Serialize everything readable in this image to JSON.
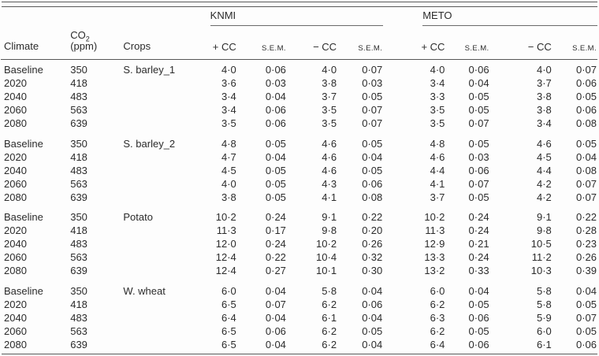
{
  "page": {
    "background": "#fdfdfd",
    "text_color": "#2b2b2b",
    "rule_color": "#575757"
  },
  "table": {
    "header": {
      "climate": "Climate",
      "co2_main": "CO",
      "co2_sub": "2",
      "co2_unit": "(ppm)",
      "crops": "Crops",
      "groups": [
        {
          "name": "KNMI",
          "subcols": [
            "+ CC",
            "S.E.M.",
            "− CC",
            "S.E.M."
          ]
        },
        {
          "name": "METO",
          "subcols": [
            "+ CC",
            "S.E.M.",
            "− CC",
            "S.E.M."
          ]
        }
      ]
    },
    "sections": [
      {
        "crop": "S. barley_1",
        "rows": [
          {
            "climate": "Baseline",
            "co2": "350",
            "knmi": [
              "4·0",
              "0·06",
              "4·0",
              "0·07"
            ],
            "meto": [
              "4·0",
              "0·06",
              "4·0",
              "0·07"
            ]
          },
          {
            "climate": "2020",
            "co2": "418",
            "knmi": [
              "3·6",
              "0·03",
              "3·8",
              "0·03"
            ],
            "meto": [
              "3·4",
              "0·04",
              "3·7",
              "0·06"
            ]
          },
          {
            "climate": "2040",
            "co2": "483",
            "knmi": [
              "3·4",
              "0·04",
              "3·7",
              "0·05"
            ],
            "meto": [
              "3·3",
              "0·05",
              "3·8",
              "0·05"
            ]
          },
          {
            "climate": "2060",
            "co2": "563",
            "knmi": [
              "3·4",
              "0·06",
              "3·5",
              "0·07"
            ],
            "meto": [
              "3·5",
              "0·05",
              "3·8",
              "0·06"
            ]
          },
          {
            "climate": "2080",
            "co2": "639",
            "knmi": [
              "3·5",
              "0·06",
              "3·5",
              "0·07"
            ],
            "meto": [
              "3·5",
              "0·07",
              "3·4",
              "0·08"
            ]
          }
        ]
      },
      {
        "crop": "S. barley_2",
        "rows": [
          {
            "climate": "Baseline",
            "co2": "350",
            "knmi": [
              "4·8",
              "0·05",
              "4·6",
              "0·05"
            ],
            "meto": [
              "4·8",
              "0·05",
              "4·6",
              "0·05"
            ]
          },
          {
            "climate": "2020",
            "co2": "418",
            "knmi": [
              "4·7",
              "0·04",
              "4·6",
              "0·04"
            ],
            "meto": [
              "4·6",
              "0·03",
              "4·5",
              "0·04"
            ]
          },
          {
            "climate": "2040",
            "co2": "483",
            "knmi": [
              "4·5",
              "0·05",
              "4·6",
              "0·05"
            ],
            "meto": [
              "4·4",
              "0·06",
              "4·4",
              "0·08"
            ]
          },
          {
            "climate": "2060",
            "co2": "563",
            "knmi": [
              "4·0",
              "0·05",
              "4·3",
              "0·06"
            ],
            "meto": [
              "4·1",
              "0·07",
              "4·2",
              "0·07"
            ]
          },
          {
            "climate": "2080",
            "co2": "639",
            "knmi": [
              "3·8",
              "0·05",
              "4·1",
              "0·08"
            ],
            "meto": [
              "3·7",
              "0·05",
              "4·2",
              "0·07"
            ]
          }
        ]
      },
      {
        "crop": "Potato",
        "rows": [
          {
            "climate": "Baseline",
            "co2": "350",
            "knmi": [
              "10·2",
              "0·24",
              "9·1",
              "0·22"
            ],
            "meto": [
              "10·2",
              "0·24",
              "9·1",
              "0·22"
            ]
          },
          {
            "climate": "2020",
            "co2": "418",
            "knmi": [
              "11·3",
              "0·17",
              "9·8",
              "0·20"
            ],
            "meto": [
              "11·3",
              "0·24",
              "9·8",
              "0·28"
            ]
          },
          {
            "climate": "2040",
            "co2": "483",
            "knmi": [
              "12·0",
              "0·24",
              "10·2",
              "0·26"
            ],
            "meto": [
              "12·9",
              "0·21",
              "10·5",
              "0·23"
            ]
          },
          {
            "climate": "2060",
            "co2": "563",
            "knmi": [
              "12·4",
              "0·22",
              "10·4",
              "0·32"
            ],
            "meto": [
              "13·3",
              "0·24",
              "11·2",
              "0·26"
            ]
          },
          {
            "climate": "2080",
            "co2": "639",
            "knmi": [
              "12·4",
              "0·27",
              "10·1",
              "0·30"
            ],
            "meto": [
              "13·2",
              "0·33",
              "10·3",
              "0·39"
            ]
          }
        ]
      },
      {
        "crop": "W. wheat",
        "rows": [
          {
            "climate": "Baseline",
            "co2": "350",
            "knmi": [
              "6·0",
              "0·04",
              "5·8",
              "0·04"
            ],
            "meto": [
              "6·0",
              "0·04",
              "5·8",
              "0·04"
            ]
          },
          {
            "climate": "2020",
            "co2": "418",
            "knmi": [
              "6·5",
              "0·07",
              "6·2",
              "0·06"
            ],
            "meto": [
              "6·2",
              "0·05",
              "5·8",
              "0·05"
            ]
          },
          {
            "climate": "2040",
            "co2": "483",
            "knmi": [
              "6·4",
              "0·04",
              "6·1",
              "0·04"
            ],
            "meto": [
              "6·3",
              "0·06",
              "5·9",
              "0·07"
            ]
          },
          {
            "climate": "2060",
            "co2": "563",
            "knmi": [
              "6·5",
              "0·06",
              "6·2",
              "0·05"
            ],
            "meto": [
              "6·2",
              "0·05",
              "6·0",
              "0·05"
            ]
          },
          {
            "climate": "2080",
            "co2": "639",
            "knmi": [
              "6·5",
              "0·04",
              "6·2",
              "0·04"
            ],
            "meto": [
              "6·4",
              "0·06",
              "6·1",
              "0·06"
            ]
          }
        ]
      }
    ]
  }
}
